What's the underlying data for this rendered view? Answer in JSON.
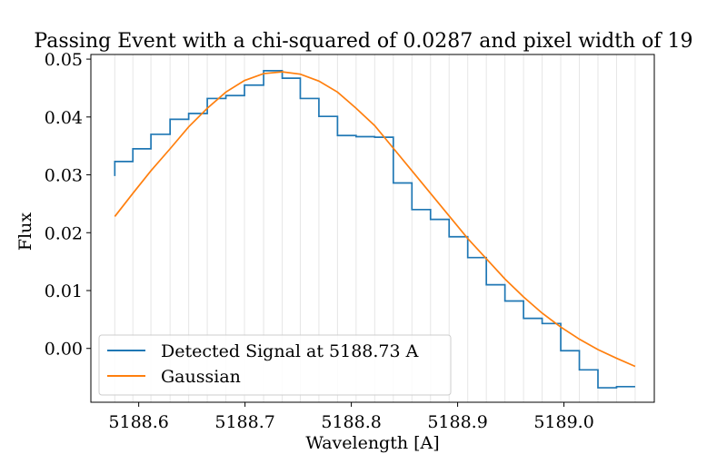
{
  "chart_data": {
    "type": "line",
    "title": "Passing Event with a chi-squared of 0.0287 and pixel width of 19",
    "xlabel": "Wavelength [A]",
    "ylabel": "Flux",
    "xlim": [
      5188.555,
      5189.085
    ],
    "ylim": [
      -0.0093,
      0.0508
    ],
    "grid": "vertical lines at pixel edges",
    "legend_position": "lower-left",
    "x_ticks": [
      5188.6,
      5188.7,
      5188.8,
      5188.9,
      5189.0
    ],
    "x_tick_labels": [
      "5188.6",
      "5188.7",
      "5188.8",
      "5188.9",
      "5189.0"
    ],
    "y_ticks": [
      0.0,
      0.01,
      0.02,
      0.03,
      0.04,
      0.05
    ],
    "y_tick_labels": [
      "0.00",
      "0.01",
      "0.02",
      "0.03",
      "0.04",
      "0.05"
    ],
    "pixel_edges": [
      5188.5775,
      5188.5945,
      5188.6115,
      5188.6295,
      5188.647,
      5188.6645,
      5188.682,
      5188.6995,
      5188.7175,
      5188.735,
      5188.752,
      5188.7695,
      5188.787,
      5188.8045,
      5188.822,
      5188.8395,
      5188.857,
      5188.8745,
      5188.892,
      5188.9095,
      5188.927,
      5188.9445,
      5188.962,
      5188.9795,
      5188.997,
      5189.0145,
      5189.032,
      5189.0495,
      5189.067
    ],
    "series": [
      {
        "name": "Detected Signal at 5188.73 A",
        "style": "step",
        "color": "#1f77b4",
        "x": [
          5188.5775,
          5188.5775,
          5188.5945,
          5188.6115,
          5188.6295,
          5188.647,
          5188.6645,
          5188.682,
          5188.6995,
          5188.7175,
          5188.735,
          5188.752,
          5188.7695,
          5188.787,
          5188.8045,
          5188.822,
          5188.8395,
          5188.857,
          5188.8745,
          5188.892,
          5188.9095,
          5188.927,
          5188.9445,
          5188.962,
          5188.9795,
          5188.997,
          5189.0145,
          5189.032,
          5189.0495,
          5189.067
        ],
        "y": [
          0.0298,
          0.0323,
          0.0345,
          0.037,
          0.0396,
          0.0406,
          0.0432,
          0.0437,
          0.0455,
          0.048,
          0.0467,
          0.0432,
          0.0401,
          0.0368,
          0.0366,
          0.0365,
          0.0286,
          0.024,
          0.0223,
          0.0193,
          0.0157,
          0.011,
          0.0082,
          0.0052,
          0.0043,
          -0.0004,
          -0.0037,
          -0.0068,
          -0.0066,
          -0.0066
        ]
      },
      {
        "name": "Gaussian",
        "style": "line",
        "color": "#ff7f0e",
        "x": [
          5188.5775,
          5188.5945,
          5188.6115,
          5188.6295,
          5188.647,
          5188.6645,
          5188.682,
          5188.6995,
          5188.7175,
          5188.735,
          5188.752,
          5188.7695,
          5188.787,
          5188.8045,
          5188.822,
          5188.8395,
          5188.857,
          5188.8745,
          5188.892,
          5188.9095,
          5188.927,
          5188.9445,
          5188.962,
          5188.9795,
          5188.997,
          5189.0145,
          5189.032,
          5189.0495,
          5189.067
        ],
        "y": [
          0.0228,
          0.0268,
          0.0307,
          0.0345,
          0.0383,
          0.0415,
          0.0443,
          0.0463,
          0.0475,
          0.0478,
          0.0474,
          0.0462,
          0.0443,
          0.0415,
          0.0385,
          0.0346,
          0.0307,
          0.0268,
          0.0229,
          0.019,
          0.0155,
          0.012,
          0.0089,
          0.0061,
          0.0037,
          0.0016,
          -0.0002,
          -0.0017,
          -0.0031
        ]
      }
    ]
  }
}
